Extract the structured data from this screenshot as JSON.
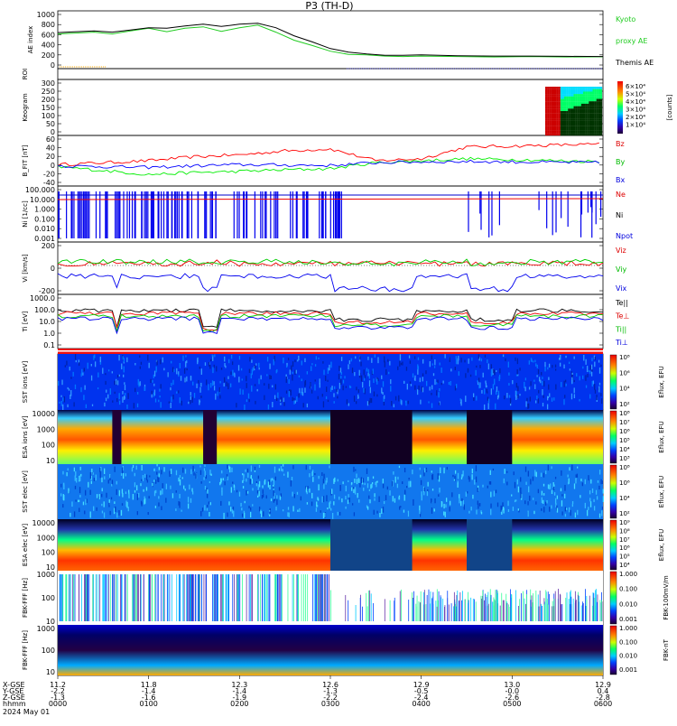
{
  "chart_data": {
    "type": "multi-panel time series (THEMIS summary plot)",
    "title": "P3 (TH-D)",
    "date_label": "2024 May 01",
    "x_axis": {
      "time_labels": [
        "0000",
        "0100",
        "0200",
        "0300",
        "0400",
        "0500",
        "0600"
      ],
      "x_gse": [
        "11.2",
        "11.8",
        "12.3",
        "12.6",
        "12.9",
        "13.0",
        "12.9"
      ],
      "y_gse": [
        "-2.2",
        "-1.4",
        "-1.4",
        "-1.3",
        "-0.5",
        "-0.0",
        "0.4"
      ],
      "z_gse": [
        "-1.3",
        "-1.6",
        "-1.9",
        "-2.2",
        "-2.4",
        "-2.6",
        "-2.8"
      ],
      "row_labels": [
        "X-GSE",
        "Y-GSE",
        "Z-GSE",
        "hhmm"
      ]
    },
    "panels": [
      {
        "id": "ae",
        "ylabel": "AE index",
        "ticks": [
          "1000",
          "800",
          "600",
          "400",
          "200",
          "0"
        ],
        "ylim": [
          -100,
          1000
        ],
        "right_labels": [
          {
            "text": "Kyoto",
            "color": "#22cc22"
          },
          {
            "text": "proxy AE",
            "color": "#22cc22"
          },
          {
            "text": "Themis AE",
            "color": "#000000"
          }
        ],
        "series": [
          {
            "name": "Kyoto proxy AE",
            "color": "#22cc22",
            "points": [
              [
                0,
                560
              ],
              [
                0.2,
                580
              ],
              [
                0.4,
                600
              ],
              [
                0.6,
                560
              ],
              [
                0.8,
                630
              ],
              [
                1.0,
                690
              ],
              [
                1.2,
                610
              ],
              [
                1.4,
                690
              ],
              [
                1.6,
                720
              ],
              [
                1.8,
                620
              ],
              [
                2.0,
                700
              ],
              [
                2.2,
                760
              ],
              [
                2.4,
                600
              ],
              [
                2.6,
                420
              ],
              [
                2.8,
                300
              ],
              [
                3.0,
                170
              ],
              [
                3.2,
                100
              ],
              [
                3.4,
                90
              ],
              [
                3.6,
                60
              ],
              [
                3.8,
                50
              ],
              [
                4.0,
                60
              ],
              [
                4.4,
                50
              ],
              [
                4.8,
                40
              ],
              [
                5.2,
                50
              ],
              [
                5.6,
                40
              ],
              [
                6.0,
                45
              ]
            ]
          },
          {
            "name": "Themis AE",
            "color": "#000000",
            "points": [
              [
                0,
                590
              ],
              [
                0.2,
                610
              ],
              [
                0.4,
                630
              ],
              [
                0.6,
                600
              ],
              [
                0.8,
                650
              ],
              [
                1.0,
                700
              ],
              [
                1.2,
                690
              ],
              [
                1.4,
                740
              ],
              [
                1.6,
                780
              ],
              [
                1.8,
                730
              ],
              [
                2.0,
                780
              ],
              [
                2.2,
                800
              ],
              [
                2.4,
                700
              ],
              [
                2.6,
                520
              ],
              [
                2.8,
                380
              ],
              [
                3.0,
                230
              ],
              [
                3.2,
                150
              ],
              [
                3.4,
                110
              ],
              [
                3.6,
                80
              ],
              [
                3.8,
                80
              ],
              [
                4.0,
                90
              ],
              [
                4.4,
                70
              ],
              [
                4.8,
                60
              ],
              [
                5.2,
                60
              ],
              [
                5.6,
                55
              ],
              [
                6.0,
                50
              ]
            ]
          }
        ]
      },
      {
        "id": "roi",
        "ylabel": "ROI"
      },
      {
        "id": "keogram",
        "ylabel": "Keogram",
        "ticks": [
          "300",
          "250",
          "200",
          "150",
          "100",
          "50",
          "0"
        ],
        "colorbar_ticks": [
          "6×10⁴",
          "5×10⁴",
          "4×10⁴",
          "3×10⁴",
          "2×10⁴",
          "1×10⁴"
        ],
        "colorbar_label": "[counts]"
      },
      {
        "id": "bfield",
        "ylabel": "B_FIT [nT]",
        "ticks": [
          "60",
          "40",
          "20",
          "0",
          "-20",
          "-40"
        ],
        "ylim": [
          -50,
          60
        ],
        "right_labels": [
          {
            "text": "Bz",
            "color": "#dd0000"
          },
          {
            "text": "By",
            "color": "#00bb00"
          },
          {
            "text": "Bx",
            "color": "#0000dd"
          }
        ],
        "series": [
          {
            "name": "Bz",
            "color": "#ff0000",
            "points": [
              [
                0,
                -5
              ],
              [
                0.5,
                0
              ],
              [
                1.0,
                5
              ],
              [
                1.5,
                15
              ],
              [
                2.0,
                20
              ],
              [
                2.5,
                30
              ],
              [
                3.0,
                35
              ],
              [
                3.5,
                5
              ],
              [
                4.0,
                10
              ],
              [
                4.5,
                40
              ],
              [
                5.0,
                42
              ],
              [
                5.5,
                45
              ],
              [
                6.0,
                47
              ]
            ]
          },
          {
            "name": "By",
            "color": "#00ee00",
            "points": [
              [
                0,
                -10
              ],
              [
                0.5,
                -20
              ],
              [
                1.0,
                -30
              ],
              [
                1.5,
                -25
              ],
              [
                2.0,
                -22
              ],
              [
                2.5,
                -18
              ],
              [
                3.0,
                -15
              ],
              [
                3.5,
                0
              ],
              [
                4.0,
                5
              ],
              [
                4.5,
                10
              ],
              [
                5.0,
                8
              ],
              [
                5.5,
                5
              ],
              [
                6.0,
                3
              ]
            ]
          },
          {
            "name": "Bx",
            "color": "#0000ff",
            "points": [
              [
                0,
                -8
              ],
              [
                0.5,
                -10
              ],
              [
                1.0,
                -12
              ],
              [
                1.5,
                -8
              ],
              [
                2.0,
                -5
              ],
              [
                2.5,
                -6
              ],
              [
                3.0,
                -7
              ],
              [
                3.5,
                0
              ],
              [
                4.0,
                2
              ],
              [
                4.5,
                3
              ],
              [
                5.0,
                2
              ],
              [
                5.5,
                1
              ],
              [
                6.0,
                0
              ]
            ]
          }
        ]
      },
      {
        "id": "density",
        "ylabel": "Ni [1/cc]",
        "ticks": [
          "100.000",
          "10.000",
          "1.000",
          "0.100",
          "0.010",
          "0.001"
        ],
        "right_labels": [
          {
            "text": "Ne",
            "color": "#dd0000"
          },
          {
            "text": "Ni",
            "color": "#000000"
          },
          {
            "text": "Npot",
            "color": "#0000dd"
          }
        ]
      },
      {
        "id": "velocity",
        "ylabel": "Vi [km/s]",
        "ticks": [
          "200",
          "0",
          "-200"
        ],
        "right_labels": [
          {
            "text": "Viz",
            "color": "#dd0000"
          },
          {
            "text": "Viy",
            "color": "#00bb00"
          },
          {
            "text": "Vix",
            "color": "#0000dd"
          }
        ]
      },
      {
        "id": "temperature",
        "ylabel": "Ti [eV]",
        "ticks": [
          "1000.0",
          "100.0",
          "10.0",
          "1.0",
          "0.1"
        ],
        "right_labels": [
          {
            "text": "Te||",
            "color": "#000000"
          },
          {
            "text": "Te⊥",
            "color": "#dd0000"
          },
          {
            "text": "Ti||",
            "color": "#00bb00"
          },
          {
            "text": "Ti⊥",
            "color": "#0000dd"
          }
        ]
      },
      {
        "id": "sst_ion",
        "ylabel": "SST ions [eV]",
        "colorbar_ticks": [
          "10⁸",
          "10⁶",
          "10⁴",
          "10²"
        ],
        "colorbar_label": "Eflux, EFU"
      },
      {
        "id": "esa_ion",
        "ylabel": "ESA ions [eV]",
        "ticks": [
          "10000",
          "1000",
          "100",
          "10"
        ],
        "colorbar_ticks": [
          "10⁸",
          "10⁷",
          "10⁶",
          "10⁵",
          "10⁴",
          "10³"
        ],
        "colorbar_label": "Eflux, EFU"
      },
      {
        "id": "sst_elec",
        "ylabel": "SST elec [eV]",
        "colorbar_ticks": [
          "10⁸",
          "10⁶",
          "10⁴",
          "10²"
        ],
        "colorbar_label": "Eflux, EFU"
      },
      {
        "id": "esa_elec",
        "ylabel": "ESA elec [eV]",
        "ticks": [
          "10000",
          "1000",
          "100",
          "10"
        ],
        "colorbar_ticks": [
          "10⁹",
          "10⁸",
          "10⁷",
          "10⁶",
          "10⁵",
          "10⁴"
        ],
        "colorbar_label": "Eflux, EFU"
      },
      {
        "id": "fbk_fff_e",
        "ylabel": "FBK-FFF [Hz]",
        "ticks": [
          "1000",
          "100",
          "10"
        ],
        "colorbar_ticks": [
          "1.000",
          "0.100",
          "0.010",
          "0.001"
        ],
        "colorbar_label": "FBK-100mV/m"
      },
      {
        "id": "fbk_fff_b",
        "ylabel": "FBK-FFF [Hz]",
        "ticks": [
          "1000",
          "100",
          "10"
        ],
        "colorbar_ticks": [
          "1.000",
          "0.100",
          "0.010",
          "0.001"
        ],
        "colorbar_label": "FBK-nT"
      }
    ]
  }
}
